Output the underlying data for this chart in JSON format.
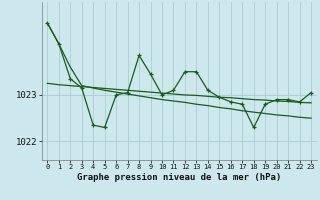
{
  "title": "Graphe pression niveau de la mer (hPa)",
  "bg_color": "#cce8ec",
  "grid_color": "#a8cdd4",
  "line_color": "#1a5c1a",
  "x_values": [
    0,
    1,
    2,
    3,
    4,
    5,
    6,
    7,
    8,
    9,
    10,
    11,
    12,
    13,
    14,
    15,
    16,
    17,
    18,
    19,
    20,
    21,
    22,
    23
  ],
  "pressure_data": [
    1024.55,
    1024.1,
    1023.35,
    1023.15,
    1022.35,
    1022.3,
    1023.0,
    1023.05,
    1023.85,
    1023.45,
    1023.0,
    1023.1,
    1023.5,
    1023.5,
    1023.1,
    1022.95,
    1022.85,
    1022.8,
    1022.3,
    1022.8,
    1022.9,
    1022.9,
    1022.85,
    1023.05
  ],
  "trend1_data": [
    1024.55,
    1024.1,
    1023.6,
    1023.2,
    1023.15,
    1023.1,
    1023.06,
    1023.02,
    1022.98,
    1022.94,
    1022.9,
    1022.87,
    1022.84,
    1022.8,
    1022.77,
    1022.73,
    1022.7,
    1022.66,
    1022.63,
    1022.6,
    1022.57,
    1022.55,
    1022.52,
    1022.5
  ],
  "trend2_data": [
    1023.25,
    1023.22,
    1023.2,
    1023.18,
    1023.16,
    1023.14,
    1023.12,
    1023.1,
    1023.08,
    1023.06,
    1023.04,
    1023.02,
    1023.0,
    1022.99,
    1022.97,
    1022.95,
    1022.94,
    1022.92,
    1022.9,
    1022.89,
    1022.87,
    1022.86,
    1022.84,
    1022.83
  ],
  "ylim_min": 1021.6,
  "ylim_max": 1025.0,
  "yticks": [
    1022,
    1023
  ],
  "figsize": [
    3.2,
    2.0
  ],
  "dpi": 100
}
